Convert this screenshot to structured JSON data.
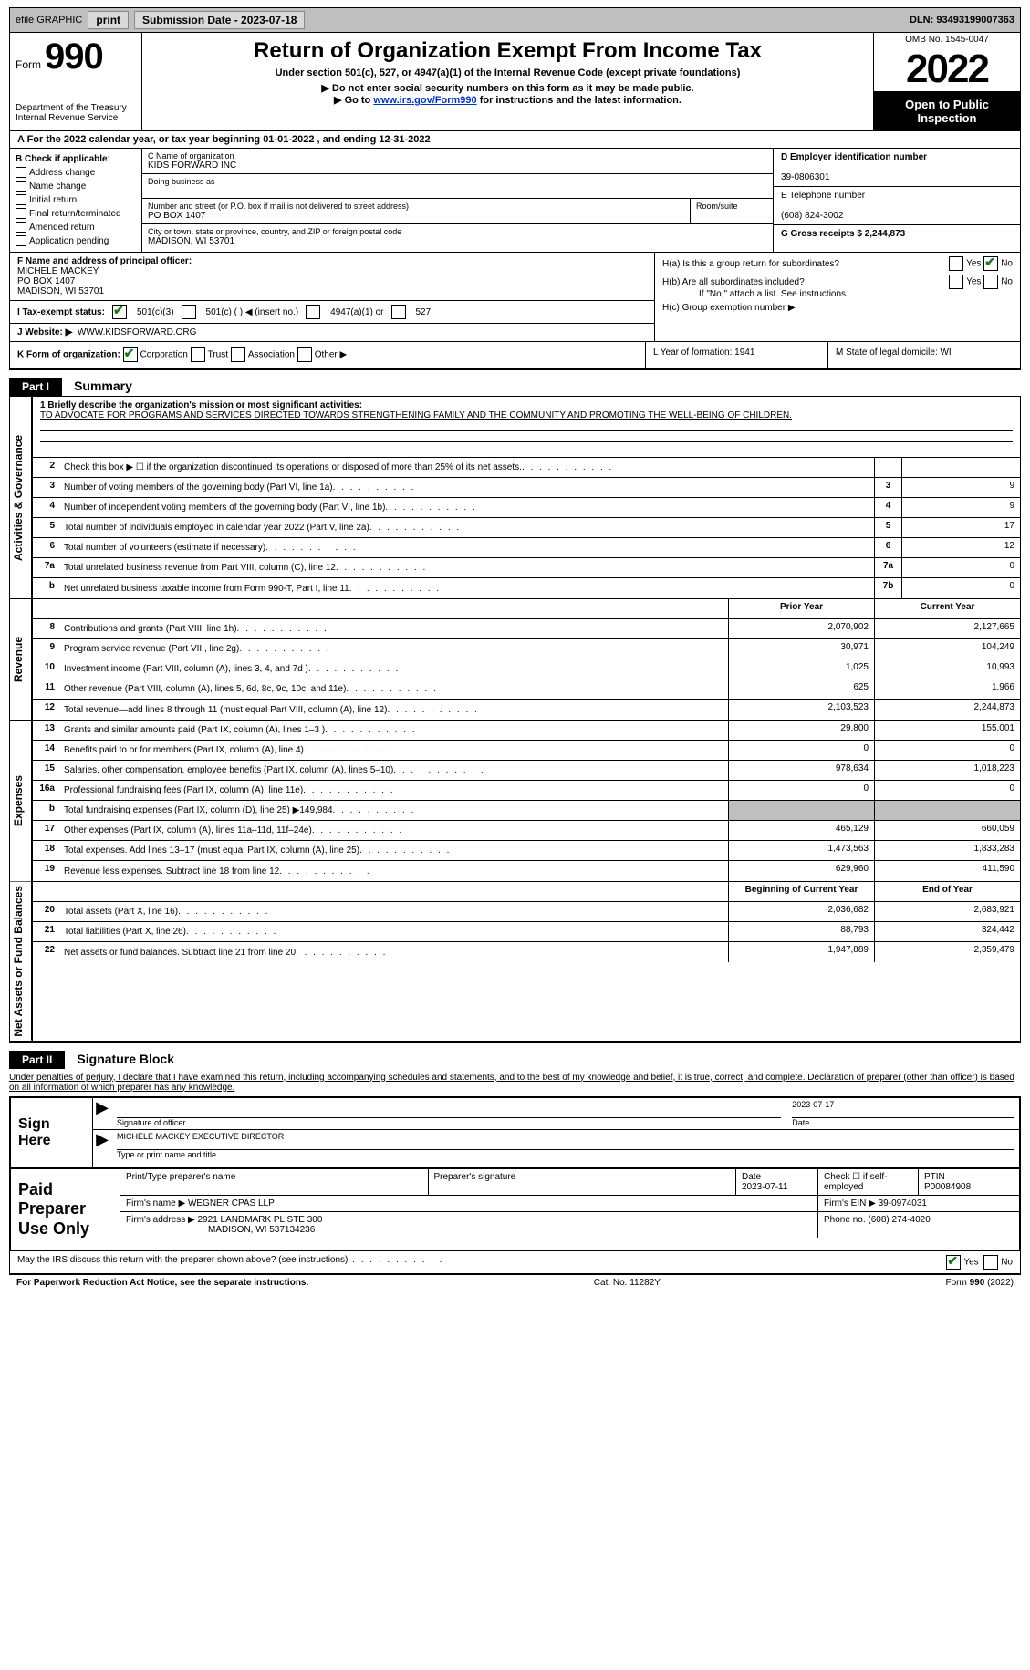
{
  "topbar": {
    "efile": "efile GRAPHIC",
    "print": "print",
    "submission_label": "Submission Date - 2023-07-18",
    "dln_label": "DLN: 93493199007363"
  },
  "header": {
    "form_word": "Form",
    "form_num": "990",
    "dept": "Department of the Treasury",
    "irs": "Internal Revenue Service",
    "title": "Return of Organization Exempt From Income Tax",
    "subtitle": "Under section 501(c), 527, or 4947(a)(1) of the Internal Revenue Code (except private foundations)",
    "line1": "▶ Do not enter social security numbers on this form as it may be made public.",
    "line2_pre": "▶ Go to ",
    "line2_link": "www.irs.gov/Form990",
    "line2_post": " for instructions and the latest information.",
    "omb": "OMB No. 1545-0047",
    "year": "2022",
    "otp": "Open to Public Inspection"
  },
  "rowA": "A For the 2022 calendar year, or tax year beginning 01-01-2022   , and ending 12-31-2022",
  "colB": {
    "label": "B Check if applicable:",
    "opts": [
      "Address change",
      "Name change",
      "Initial return",
      "Final return/terminated",
      "Amended return",
      "Application pending"
    ]
  },
  "colC": {
    "name_label": "C Name of organization",
    "name": "KIDS FORWARD INC",
    "dba_label": "Doing business as",
    "addr_label": "Number and street (or P.O. box if mail is not delivered to street address)",
    "addr": "PO BOX 1407",
    "room_label": "Room/suite",
    "city_label": "City or town, state or province, country, and ZIP or foreign postal code",
    "city": "MADISON, WI  53701"
  },
  "colD": {
    "ein_label": "D Employer identification number",
    "ein": "39-0806301",
    "phone_label": "E Telephone number",
    "phone": "(608) 824-3002",
    "gross_label": "G Gross receipts $ 2,244,873"
  },
  "rowF": {
    "label": "F  Name and address of principal officer:",
    "name": "MICHELE MACKEY",
    "addr1": "PO BOX 1407",
    "addr2": "MADISON, WI  53701"
  },
  "rowH": {
    "ha": "H(a)  Is this a group return for subordinates?",
    "hb": "H(b)  Are all subordinates included?",
    "hb_note": "If \"No,\" attach a list. See instructions.",
    "hc": "H(c)  Group exemption number ▶"
  },
  "rowI": {
    "label": "I   Tax-exempt status:",
    "o1": "501(c)(3)",
    "o2": "501(c) (  ) ◀ (insert no.)",
    "o3": "4947(a)(1) or",
    "o4": "527"
  },
  "rowJ": {
    "label": "J   Website: ▶",
    "val": "WWW.KIDSFORWARD.ORG"
  },
  "rowK": {
    "label": "K Form of organization:",
    "o1": "Corporation",
    "o2": "Trust",
    "o3": "Association",
    "o4": "Other ▶"
  },
  "rowL": "L Year of formation: 1941",
  "rowM": "M State of legal domicile: WI",
  "part1": {
    "tag": "Part I",
    "title": "Summary"
  },
  "mission": {
    "label": "1   Briefly describe the organization's mission or most significant activities:",
    "text": "TO ADVOCATE FOR PROGRAMS AND SERVICES DIRECTED TOWARDS STRENGTHENING FAMILY AND THE COMMUNITY AND PROMOTING THE WELL-BEING OF CHILDREN."
  },
  "lines_ag": [
    {
      "n": "2",
      "t": "Check this box ▶ ☐  if the organization discontinued its operations or disposed of more than 25% of its net assets.",
      "box": "",
      "v": ""
    },
    {
      "n": "3",
      "t": "Number of voting members of the governing body (Part VI, line 1a)",
      "box": "3",
      "v": "9"
    },
    {
      "n": "4",
      "t": "Number of independent voting members of the governing body (Part VI, line 1b)",
      "box": "4",
      "v": "9"
    },
    {
      "n": "5",
      "t": "Total number of individuals employed in calendar year 2022 (Part V, line 2a)",
      "box": "5",
      "v": "17"
    },
    {
      "n": "6",
      "t": "Total number of volunteers (estimate if necessary)",
      "box": "6",
      "v": "12"
    },
    {
      "n": "7a",
      "t": "Total unrelated business revenue from Part VIII, column (C), line 12",
      "box": "7a",
      "v": "0"
    },
    {
      "n": "b",
      "t": "Net unrelated business taxable income from Form 990-T, Part I, line 11",
      "box": "7b",
      "v": "0"
    }
  ],
  "rev_head": {
    "py": "Prior Year",
    "cy": "Current Year"
  },
  "lines_rev": [
    {
      "n": "8",
      "t": "Contributions and grants (Part VIII, line 1h)",
      "py": "2,070,902",
      "cy": "2,127,665"
    },
    {
      "n": "9",
      "t": "Program service revenue (Part VIII, line 2g)",
      "py": "30,971",
      "cy": "104,249"
    },
    {
      "n": "10",
      "t": "Investment income (Part VIII, column (A), lines 3, 4, and 7d )",
      "py": "1,025",
      "cy": "10,993"
    },
    {
      "n": "11",
      "t": "Other revenue (Part VIII, column (A), lines 5, 6d, 8c, 9c, 10c, and 11e)",
      "py": "625",
      "cy": "1,966"
    },
    {
      "n": "12",
      "t": "Total revenue—add lines 8 through 11 (must equal Part VIII, column (A), line 12)",
      "py": "2,103,523",
      "cy": "2,244,873"
    }
  ],
  "lines_exp": [
    {
      "n": "13",
      "t": "Grants and similar amounts paid (Part IX, column (A), lines 1–3 )",
      "py": "29,800",
      "cy": "155,001"
    },
    {
      "n": "14",
      "t": "Benefits paid to or for members (Part IX, column (A), line 4)",
      "py": "0",
      "cy": "0"
    },
    {
      "n": "15",
      "t": "Salaries, other compensation, employee benefits (Part IX, column (A), lines 5–10)",
      "py": "978,634",
      "cy": "1,018,223"
    },
    {
      "n": "16a",
      "t": "Professional fundraising fees (Part IX, column (A), line 11e)",
      "py": "0",
      "cy": "0"
    },
    {
      "n": "b",
      "t": "Total fundraising expenses (Part IX, column (D), line 25) ▶149,984",
      "py": "grey",
      "cy": "grey"
    },
    {
      "n": "17",
      "t": "Other expenses (Part IX, column (A), lines 11a–11d, 11f–24e)",
      "py": "465,129",
      "cy": "660,059"
    },
    {
      "n": "18",
      "t": "Total expenses. Add lines 13–17 (must equal Part IX, column (A), line 25)",
      "py": "1,473,563",
      "cy": "1,833,283"
    },
    {
      "n": "19",
      "t": "Revenue less expenses. Subtract line 18 from line 12",
      "py": "629,960",
      "cy": "411,590"
    }
  ],
  "na_head": {
    "py": "Beginning of Current Year",
    "cy": "End of Year"
  },
  "lines_na": [
    {
      "n": "20",
      "t": "Total assets (Part X, line 16)",
      "py": "2,036,682",
      "cy": "2,683,921"
    },
    {
      "n": "21",
      "t": "Total liabilities (Part X, line 26)",
      "py": "88,793",
      "cy": "324,442"
    },
    {
      "n": "22",
      "t": "Net assets or fund balances. Subtract line 21 from line 20",
      "py": "1,947,889",
      "cy": "2,359,479"
    }
  ],
  "vtabs": {
    "ag": "Activities & Governance",
    "rev": "Revenue",
    "exp": "Expenses",
    "na": "Net Assets or Fund Balances"
  },
  "part2": {
    "tag": "Part II",
    "title": "Signature Block"
  },
  "sig_text": "Under penalties of perjury, I declare that I have examined this return, including accompanying schedules and statements, and to the best of my knowledge and belief, it is true, correct, and complete. Declaration of preparer (other than officer) is based on all information of which preparer has any knowledge.",
  "sign_here": "Sign Here",
  "sig_officer": "Signature of officer",
  "sig_date": "2023-07-17",
  "sig_date_label": "Date",
  "sig_name": "MICHELE MACKEY  EXECUTIVE DIRECTOR",
  "sig_name_label": "Type or print name and title",
  "paid_label": "Paid Preparer Use Only",
  "paid": {
    "h1": "Print/Type preparer's name",
    "h2": "Preparer's signature",
    "h3": "Date",
    "h3v": "2023-07-11",
    "h4": "Check ☐ if self-employed",
    "h5": "PTIN",
    "h5v": "P00084908",
    "firm_label": "Firm's name   ▶",
    "firm": "WEGNER CPAS LLP",
    "ein_label": "Firm's EIN ▶",
    "ein": "39-0974031",
    "addr_label": "Firm's address ▶",
    "addr1": "2921 LANDMARK PL STE 300",
    "addr2": "MADISON, WI  537134236",
    "phone_label": "Phone no.",
    "phone": "(608) 274-4020"
  },
  "may_irs": "May the IRS discuss this return with the preparer shown above? (see instructions)",
  "footer": {
    "left": "For Paperwork Reduction Act Notice, see the separate instructions.",
    "mid": "Cat. No. 11282Y",
    "right": "Form 990 (2022)"
  },
  "yes": "Yes",
  "no": "No"
}
